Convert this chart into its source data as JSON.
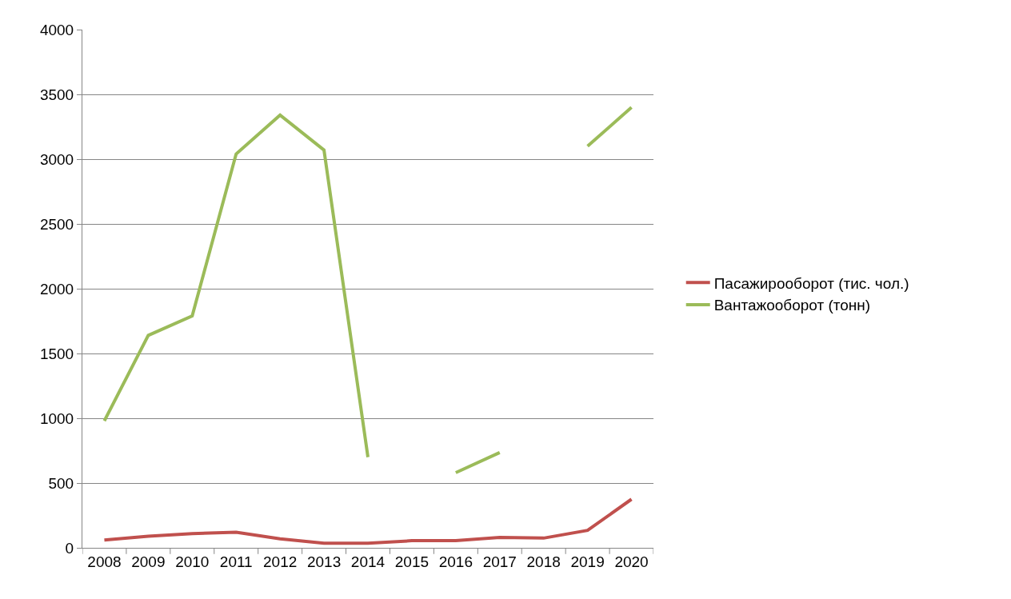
{
  "chart_data": {
    "type": "line",
    "categories": [
      "2008",
      "2009",
      "2010",
      "2011",
      "2012",
      "2013",
      "2014",
      "2015",
      "2016",
      "2017",
      "2018",
      "2019",
      "2020"
    ],
    "series": [
      {
        "name": "Пасажирооборот (тис. чол.)",
        "color": "#c0504d",
        "values": [
          60,
          90,
          110,
          120,
          70,
          35,
          35,
          55,
          55,
          80,
          75,
          135,
          375
        ]
      },
      {
        "name": "Вантажооборот (тонн)",
        "color": "#9bbb59",
        "values": [
          980,
          1640,
          1790,
          3040,
          3340,
          3070,
          700,
          null,
          580,
          735,
          null,
          3100,
          3400
        ]
      }
    ],
    "ylim": [
      0,
      4000
    ],
    "yticks": [
      0,
      500,
      1000,
      1500,
      2000,
      2500,
      3000,
      3500,
      4000
    ],
    "grid": "y",
    "legend": "right",
    "marker": "none",
    "line_style": "solid"
  }
}
